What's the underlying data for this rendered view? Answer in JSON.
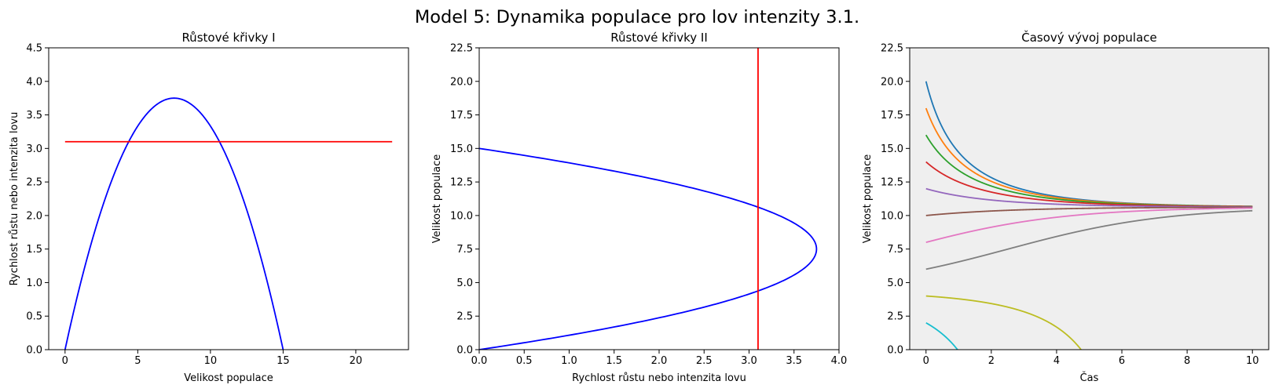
{
  "figure": {
    "title": "Model 5: Dynamika populace pro lov intenzity 3.1."
  },
  "colors": {
    "growth_curve": "#0000ff",
    "harvest_line": "#ff0000",
    "axes_background_3": "#efefef"
  },
  "chart_data": [
    {
      "type": "line",
      "title": "Růstové křivky I",
      "xlabel": "Velikost populace",
      "ylabel": "Rychlost růstu nebo intenzita lovu",
      "xlim": [
        -1.125,
        23.625
      ],
      "ylim": [
        0,
        4.5
      ],
      "xticks": [
        0,
        5,
        10,
        15,
        20
      ],
      "xtick_labels": [
        "0",
        "5",
        "10",
        "15",
        "20"
      ],
      "yticks": [
        0,
        0.5,
        1,
        1.5,
        2,
        2.5,
        3,
        3.5,
        4,
        4.5
      ],
      "ytick_labels": [
        "0.0",
        "0.5",
        "1.0",
        "1.5",
        "2.0",
        "2.5",
        "3.0",
        "3.5",
        "4.0",
        "4.5"
      ],
      "grid": false,
      "series": [
        {
          "color": "#0000ff",
          "x": [
            0,
            1,
            2,
            3,
            4,
            5,
            6,
            7,
            7.5,
            8,
            9,
            10,
            11,
            12,
            13,
            14,
            15
          ],
          "y": [
            0,
            0.933,
            1.733,
            2.4,
            2.933,
            3.333,
            3.6,
            3.733,
            3.75,
            3.733,
            3.6,
            3.333,
            2.933,
            2.4,
            1.733,
            0.933,
            0
          ]
        },
        {
          "color": "#ff0000",
          "x": [
            0,
            22.5
          ],
          "y": [
            3.1,
            3.1
          ]
        }
      ]
    },
    {
      "type": "line",
      "title": "Růstové křivky II",
      "xlabel": "Rychlost růstu nebo intenzita lovu",
      "ylabel": "Velikost populace",
      "xlim": [
        0,
        4
      ],
      "ylim": [
        0,
        22.5
      ],
      "xticks": [
        0,
        0.5,
        1,
        1.5,
        2,
        2.5,
        3,
        3.5,
        4
      ],
      "xtick_labels": [
        "0.0",
        "0.5",
        "1.0",
        "1.5",
        "2.0",
        "2.5",
        "3.0",
        "3.5",
        "4.0"
      ],
      "yticks": [
        0,
        2.5,
        5,
        7.5,
        10,
        12.5,
        15,
        17.5,
        20,
        22.5
      ],
      "ytick_labels": [
        "0.0",
        "2.5",
        "5.0",
        "7.5",
        "10.0",
        "12.5",
        "15.0",
        "17.5",
        "20.0",
        "22.5"
      ],
      "grid": false,
      "series": [
        {
          "color": "#0000ff",
          "x": [
            0,
            0.933,
            1.733,
            2.4,
            2.933,
            3.333,
            3.6,
            3.733,
            3.75,
            3.733,
            3.6,
            3.333,
            2.933,
            2.4,
            1.733,
            0.933,
            0
          ],
          "y": [
            0,
            1,
            2,
            3,
            4,
            5,
            6,
            7,
            7.5,
            8,
            9,
            10,
            11,
            12,
            13,
            14,
            15
          ]
        },
        {
          "color": "#ff0000",
          "x": [
            3.1,
            3.1
          ],
          "y": [
            0,
            22.5
          ]
        }
      ]
    },
    {
      "type": "line",
      "title": "Časový vývoj populace",
      "xlabel": "Čas",
      "ylabel": "Velikost populace",
      "xlim": [
        -0.5,
        10.5
      ],
      "ylim": [
        0,
        22.5
      ],
      "xticks": [
        0,
        2,
        4,
        6,
        8,
        10
      ],
      "xtick_labels": [
        "0",
        "2",
        "4",
        "6",
        "8",
        "10"
      ],
      "yticks": [
        0,
        2.5,
        5,
        7.5,
        10,
        12.5,
        15,
        17.5,
        20,
        22.5
      ],
      "ytick_labels": [
        "0.0",
        "2.5",
        "5.0",
        "7.5",
        "10.0",
        "12.5",
        "15.0",
        "17.5",
        "20.0",
        "22.5"
      ],
      "grid": false,
      "background": "#efefef",
      "model": {
        "carrying_capacity": 15,
        "max_growth_rate": 3.75,
        "harvest": 3.1,
        "t_end": 10
      },
      "series": [
        {
          "initial": 20,
          "color": "#1f77b4"
        },
        {
          "initial": 18,
          "color": "#ff7f0e"
        },
        {
          "initial": 16,
          "color": "#2ca02c"
        },
        {
          "initial": 14,
          "color": "#d62728"
        },
        {
          "initial": 12,
          "color": "#9467bd"
        },
        {
          "initial": 10,
          "color": "#8c564b"
        },
        {
          "initial": 8,
          "color": "#e377c2"
        },
        {
          "initial": 6,
          "color": "#7f7f7f"
        },
        {
          "initial": 4,
          "color": "#bcbd22"
        },
        {
          "initial": 2,
          "color": "#17becf"
        }
      ]
    }
  ]
}
